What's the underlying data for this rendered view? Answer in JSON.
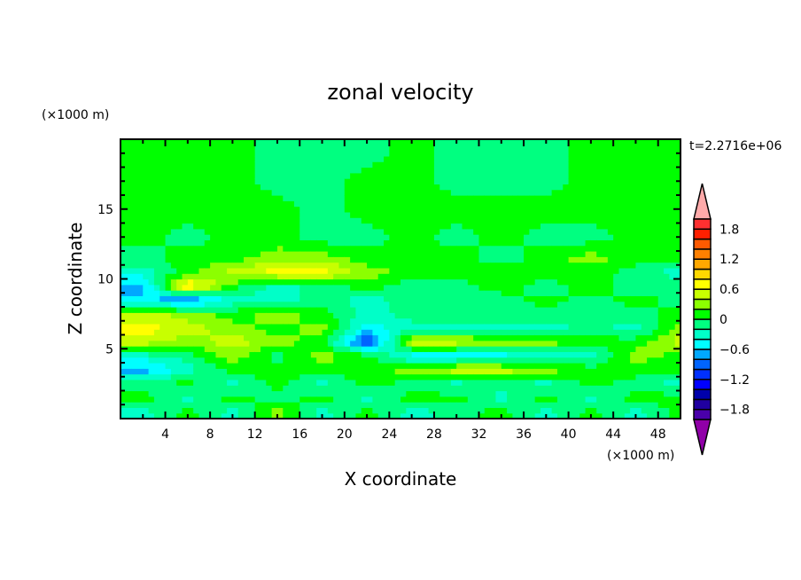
{
  "chart_data": {
    "type": "heatmap",
    "title": "zonal velocity",
    "xlabel": "X coordinate",
    "ylabel": "Z coordinate",
    "x_units": "(×1000 m)",
    "y_units": "(×1000 m)",
    "time_label": "t=2.2716e+06",
    "xlim": [
      0,
      50
    ],
    "ylim": [
      0,
      20
    ],
    "x_ticks": [
      4,
      8,
      12,
      16,
      20,
      24,
      28,
      32,
      36,
      40,
      44,
      48
    ],
    "y_ticks": [
      5,
      10,
      15
    ],
    "grid": false,
    "colorbar": {
      "levels": [
        -2,
        -1.8,
        -1.6,
        -1.4,
        -1.2,
        -1.0,
        -0.8,
        -0.6,
        -0.4,
        -0.2,
        0,
        0.2,
        0.4,
        0.6,
        0.8,
        1.0,
        1.2,
        1.4,
        1.6,
        1.8,
        2
      ],
      "tick_labels": [
        "1.8",
        "1.2",
        "0.6",
        "0",
        "−0.6",
        "−1.2",
        "−1.8"
      ],
      "tick_values": [
        1.8,
        1.2,
        0.6,
        0,
        -0.6,
        -1.2,
        -1.8
      ],
      "colors_low_to_high": [
        "#4a00aa",
        "#2000a0",
        "#0000aa",
        "#0000ff",
        "#0030ff",
        "#0064ff",
        "#00a8ff",
        "#00ffff",
        "#00ffc8",
        "#00ff80",
        "#00ff00",
        "#8cff00",
        "#c8ff00",
        "#ffff00",
        "#ffd800",
        "#ffa800",
        "#ff8000",
        "#ff5a00",
        "#ff2000",
        "#ff3030"
      ],
      "extend_high_color": "#ffaaaa",
      "extend_low_color": "#9000a8"
    },
    "grid_x": [
      2,
      6,
      10,
      14,
      18,
      22,
      26,
      30,
      34,
      38,
      42,
      46,
      50
    ],
    "grid_z": [
      19,
      17,
      15,
      13,
      11.5,
      10.5,
      9.5,
      8.5,
      7.5,
      6.5,
      5.5,
      4.5,
      3.5,
      2.5,
      1.5,
      0.5
    ],
    "values": [
      [
        0.1,
        0.1,
        0.1,
        -0.1,
        -0.1,
        -0.1,
        0.1,
        -0.1,
        -0.1,
        -0.1,
        0.1,
        0.1,
        0.1
      ],
      [
        0.1,
        0.1,
        0.1,
        -0.1,
        -0.1,
        0.1,
        0.1,
        -0.1,
        -0.1,
        -0.1,
        0.1,
        0.1,
        0.1
      ],
      [
        0.1,
        0.1,
        0.1,
        0.1,
        -0.1,
        0.1,
        0.1,
        0.1,
        0.1,
        0.1,
        0.1,
        0.1,
        0.1
      ],
      [
        0.1,
        -0.1,
        0.1,
        0.1,
        -0.1,
        -0.1,
        0.1,
        -0.1,
        0.1,
        -0.1,
        -0.1,
        0.1,
        0.1
      ],
      [
        -0.1,
        0.1,
        0.1,
        0.3,
        0.3,
        0.1,
        0.1,
        0.1,
        -0.1,
        0.1,
        0.3,
        0.1,
        0.1
      ],
      [
        -0.3,
        0.1,
        0.5,
        0.7,
        0.7,
        0.3,
        0.1,
        0.1,
        0.1,
        0.1,
        0.1,
        -0.1,
        -0.3
      ],
      [
        -0.7,
        0.9,
        0.1,
        -0.3,
        -0.1,
        0.1,
        -0.1,
        -0.1,
        0.1,
        -0.1,
        0.1,
        -0.1,
        -0.1
      ],
      [
        -0.5,
        -0.9,
        -0.3,
        -0.3,
        -0.1,
        -0.3,
        -0.1,
        -0.1,
        -0.1,
        0.1,
        -0.1,
        0.1,
        -0.1
      ],
      [
        0.5,
        0.3,
        0.1,
        0.3,
        0.1,
        -0.3,
        -0.1,
        -0.1,
        -0.1,
        -0.1,
        -0.1,
        -0.1,
        0.1
      ],
      [
        0.7,
        0.5,
        0.3,
        0.1,
        0.3,
        -0.5,
        -0.3,
        -0.3,
        -0.3,
        -0.3,
        -0.1,
        -0.3,
        0.3
      ],
      [
        0.5,
        0.3,
        0.5,
        0.3,
        0.1,
        -1.1,
        0.5,
        0.5,
        0.3,
        0.3,
        0.1,
        0.1,
        0.5
      ],
      [
        -0.3,
        -0.1,
        0.3,
        -0.1,
        0.3,
        0.1,
        -0.5,
        -0.5,
        -0.5,
        -0.3,
        -0.3,
        0.3,
        0.1
      ],
      [
        -0.7,
        -0.3,
        0.1,
        0.1,
        0.1,
        0.1,
        0.3,
        0.5,
        0.5,
        0.3,
        0.1,
        0.1,
        0.1
      ],
      [
        -0.1,
        0.1,
        -0.3,
        0.1,
        -0.3,
        0.1,
        -0.1,
        -0.3,
        -0.1,
        -0.3,
        0.1,
        -0.1,
        -0.3
      ],
      [
        0.1,
        -0.3,
        0.1,
        -0.1,
        0.1,
        -0.3,
        0.1,
        0.1,
        -0.3,
        0.1,
        -0.3,
        0.1,
        0.1
      ],
      [
        -0.3,
        0.1,
        -0.3,
        0.3,
        -0.3,
        0.1,
        -0.3,
        -0.1,
        0.1,
        -0.3,
        0.1,
        -0.3,
        0.1
      ]
    ]
  }
}
